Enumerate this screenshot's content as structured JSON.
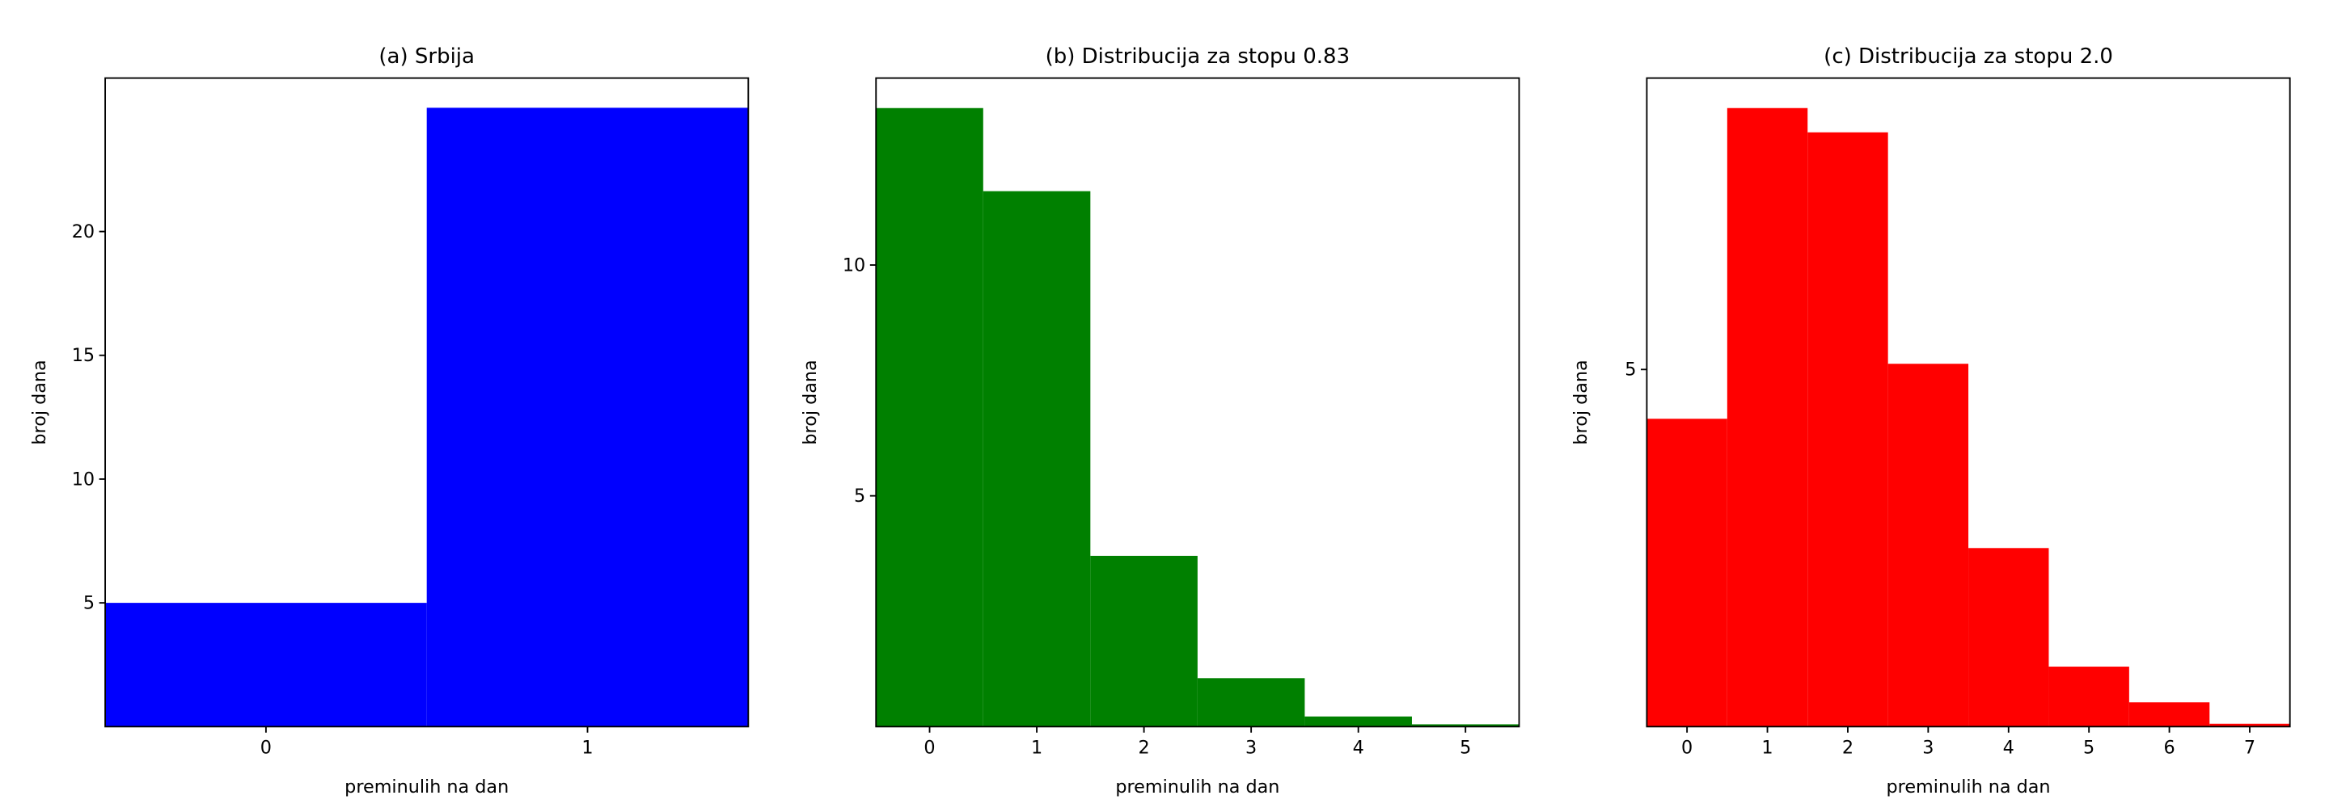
{
  "chart_data": [
    {
      "type": "bar",
      "title": "(a) Srbija",
      "xlabel": "preminulih na dan",
      "ylabel": "broj dana",
      "x": [
        0,
        1
      ],
      "values": [
        5,
        25
      ],
      "color": "#0000ff",
      "xlim": [
        -0.5,
        1.5
      ],
      "ylim": [
        0,
        26.2
      ],
      "xticks": [
        0,
        1
      ],
      "yticks": [
        5,
        10,
        15,
        20
      ]
    },
    {
      "type": "bar",
      "title": "(b) Distribucija za stopu 0.83",
      "xlabel": "preminulih na dan",
      "ylabel": "broj dana",
      "x": [
        0,
        1,
        2,
        3,
        4,
        5
      ],
      "values": [
        13.4,
        11.6,
        3.7,
        1.05,
        0.22,
        0.05
      ],
      "color": "#008000",
      "xlim": [
        -0.5,
        5.5
      ],
      "ylim": [
        0,
        14.05
      ],
      "xticks": [
        0,
        1,
        2,
        3,
        4,
        5
      ],
      "yticks": [
        5,
        10
      ]
    },
    {
      "type": "bar",
      "title": "(c) Distribucija za stopu 2.0",
      "xlabel": "preminulih na dan",
      "ylabel": "broj dana",
      "x": [
        0,
        1,
        2,
        3,
        4,
        5,
        6,
        7
      ],
      "values": [
        4.31,
        8.66,
        8.32,
        5.08,
        2.5,
        0.84,
        0.34,
        0.04
      ],
      "color": "#ff0000",
      "xlim": [
        -0.5,
        7.5
      ],
      "ylim": [
        0,
        9.08
      ],
      "xticks": [
        0,
        1,
        2,
        3,
        4,
        5,
        6,
        7
      ],
      "yticks": [
        5
      ]
    }
  ]
}
